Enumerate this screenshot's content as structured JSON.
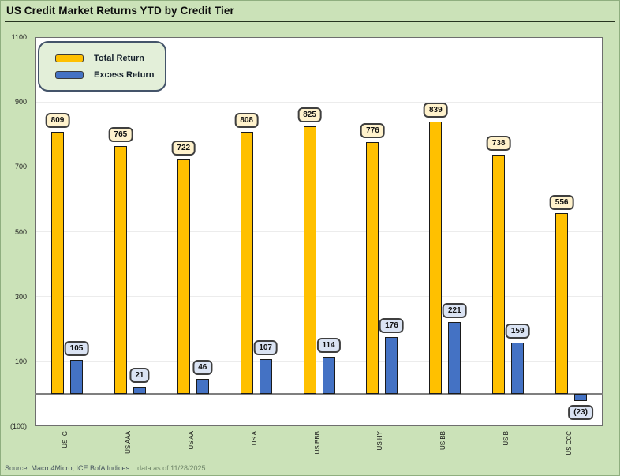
{
  "footer": {
    "source": "Source: Macro4Micro, ICE BofA Indices",
    "as_of": "data as of 11/28/2025"
  },
  "chart_data": {
    "type": "bar",
    "title": "US Credit Market Returns YTD by Credit Tier",
    "categories": [
      "US IG",
      "US AAA",
      "US AA",
      "US A",
      "US BBB",
      "US HY",
      "US BB",
      "US B",
      "US CCC"
    ],
    "series": [
      {
        "name": "Total Return",
        "color": "#FFC000",
        "label_bg": "#FFF2CC",
        "values": [
          809,
          765,
          722,
          808,
          825,
          776,
          839,
          738,
          556
        ],
        "labels": [
          "809",
          "765",
          "722",
          "808",
          "825",
          "776",
          "839",
          "738",
          "556"
        ]
      },
      {
        "name": "Excess Return",
        "color": "#4472C4",
        "label_bg": "#DAE3F3",
        "values": [
          105,
          21,
          46,
          107,
          114,
          176,
          221,
          159,
          -23
        ],
        "labels": [
          "105",
          "21",
          "46",
          "107",
          "114",
          "176",
          "221",
          "159",
          "(23)"
        ]
      }
    ],
    "ylim": [
      -100,
      1100
    ],
    "yticks": [
      {
        "value": 1100,
        "label": "1100"
      },
      {
        "value": 900,
        "label": "900"
      },
      {
        "value": 700,
        "label": "700"
      },
      {
        "value": 500,
        "label": "500"
      },
      {
        "value": 300,
        "label": "300"
      },
      {
        "value": 100,
        "label": "100"
      },
      {
        "value": -100,
        "label": "(100)"
      }
    ],
    "grid": true,
    "legend_position": "top-left",
    "colors": {
      "background": "#cbe2b8",
      "plot_background": "#ffffff",
      "gridline": "#ececec",
      "zero_line": "#7f7f7f",
      "plot_border": "#6e6e6e",
      "legend_bg": "#e3efd9",
      "legend_border": "#44546a"
    }
  }
}
